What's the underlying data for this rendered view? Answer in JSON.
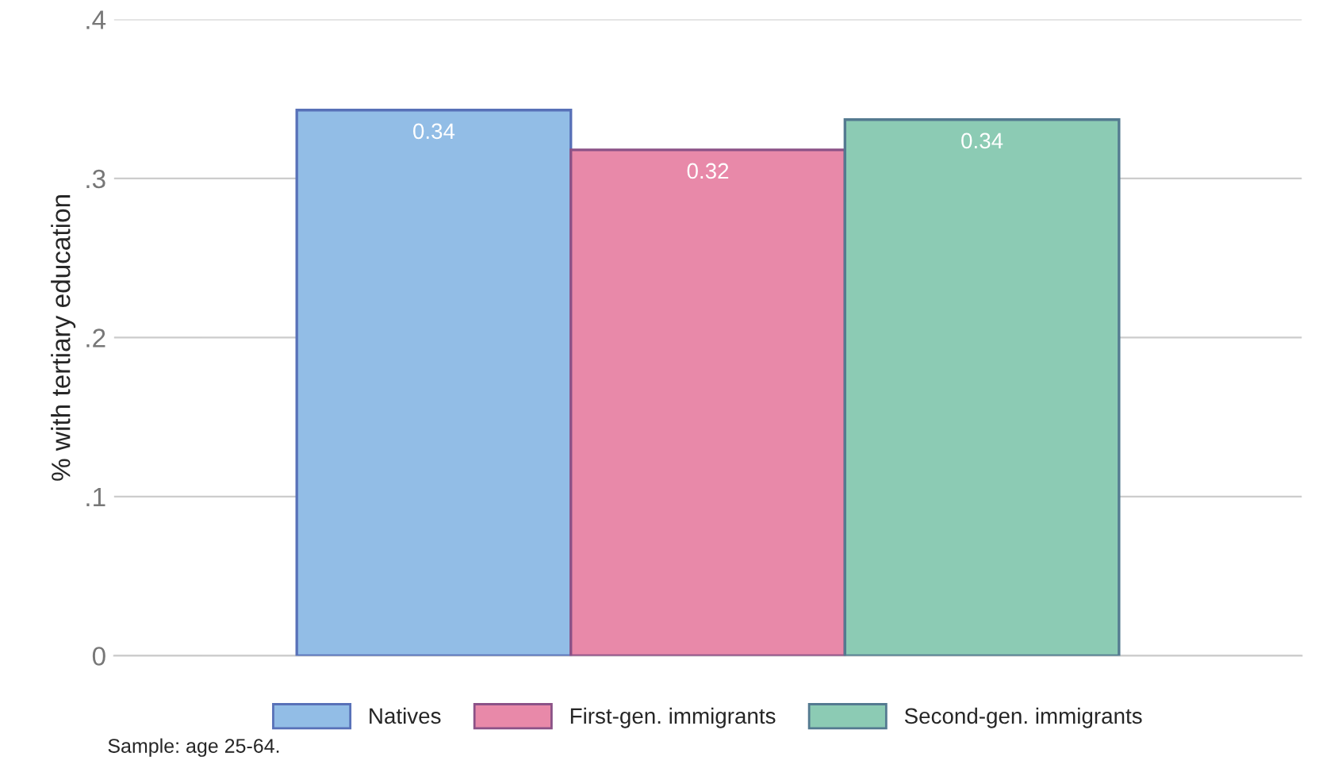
{
  "chart_data": {
    "type": "bar",
    "ylabel": "% with tertiary education",
    "categories": [
      null
    ],
    "series": [
      {
        "name": "Natives",
        "color": "#92bde6",
        "values": [
          0.343
        ],
        "value_labels": [
          "0.34"
        ]
      },
      {
        "name": "First-gen. immigrants",
        "color": "#e889a9",
        "values": [
          0.318
        ],
        "value_labels": [
          "0.32"
        ]
      },
      {
        "name": "Second-gen. immigrants",
        "color": "#8ccbb4",
        "values": [
          0.337
        ],
        "value_labels": [
          "0.34"
        ]
      }
    ],
    "ylim": [
      0,
      0.4
    ],
    "yticks": [
      {
        "value": 0,
        "label": "0"
      },
      {
        "value": 0.1,
        "label": ".1"
      },
      {
        "value": 0.2,
        "label": ".2"
      },
      {
        "value": 0.3,
        "label": ".3"
      },
      {
        "value": 0.4,
        "label": ".4"
      }
    ],
    "grid": "y",
    "legend": "bottom",
    "annotations": [
      "Sample: age 25-64."
    ]
  }
}
